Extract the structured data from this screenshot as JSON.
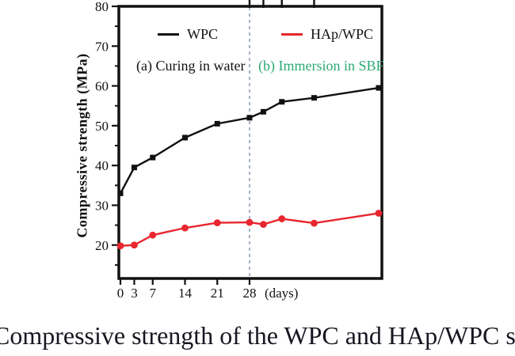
{
  "figure": {
    "caption": "Compressive strength of the WPC and HAp/WPC samples"
  },
  "chart_data": {
    "type": "line",
    "title": "",
    "ylabel": "Compressive strength (MPa)",
    "x_unit_label": "(days)",
    "x": [
      0,
      3,
      7,
      14,
      21,
      28,
      31,
      35,
      42,
      56
    ],
    "x_tick_labels": [
      "0",
      "3",
      "7",
      "14",
      "21",
      "28"
    ],
    "x_tick_days": [
      0,
      3,
      7,
      14,
      21,
      28
    ],
    "top_tick_days": [
      28,
      31,
      35,
      42
    ],
    "y_major_ticks": [
      20,
      30,
      40,
      50,
      60,
      70,
      80
    ],
    "y_minor_ticks": [
      15,
      25,
      35,
      45,
      55,
      65,
      75
    ],
    "xlim": [
      0,
      56.7
    ],
    "ylim": [
      11.6,
      80
    ],
    "grid": false,
    "legend_position": "top-inside",
    "series": [
      {
        "name": "WPC",
        "color": "#111111",
        "marker": "square",
        "values": [
          33,
          39.5,
          42,
          47,
          50.5,
          52,
          53.5,
          56,
          57,
          59.5
        ]
      },
      {
        "name": "HAp/WPC",
        "color": "#e8262d",
        "marker": "circle",
        "values": [
          19.8,
          20,
          22.5,
          24.3,
          25.6,
          25.7,
          25.2,
          26.6,
          25.5,
          28
        ]
      }
    ],
    "annotations": [
      {
        "text": "(a) Curing in water",
        "color": "#111111"
      },
      {
        "text": "(b) Immersion in SBF",
        "color": "#2aaa74"
      }
    ],
    "divider_day": 28,
    "divider_color": "#8a9bb0",
    "axis_color": "#111111"
  }
}
